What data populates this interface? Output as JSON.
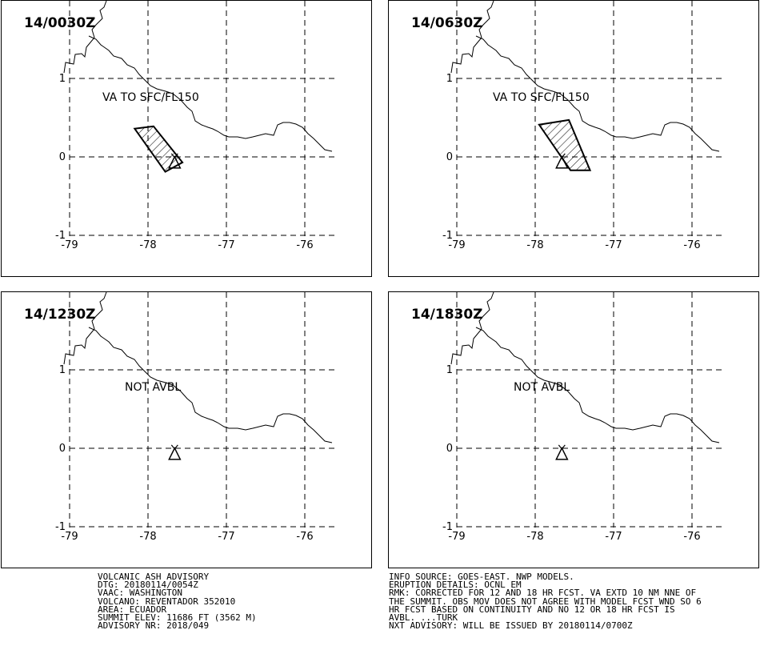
{
  "panels": [
    {
      "time": "14/0030Z",
      "label": "VA TO SFC/FL150",
      "polygon": [
        [
          -78.17,
          0.36
        ],
        [
          -77.93,
          0.39
        ],
        [
          -77.56,
          -0.07
        ],
        [
          -77.78,
          -0.19
        ]
      ]
    },
    {
      "time": "14/0630Z",
      "label": "VA TO SFC/FL150",
      "polygon": [
        [
          -77.95,
          0.41
        ],
        [
          -77.57,
          0.47
        ],
        [
          -77.3,
          -0.17
        ],
        [
          -77.55,
          -0.17
        ]
      ]
    },
    {
      "time": "14/1230Z",
      "label": "NOT AVBL",
      "polygon": null
    },
    {
      "time": "14/1830Z",
      "label": "NOT AVBL",
      "polygon": null
    }
  ],
  "axes": {
    "x_ticks": [
      "-79",
      "-78",
      "-77",
      "-76"
    ],
    "y_ticks": [
      "1",
      "0",
      "-1"
    ]
  },
  "volcano": {
    "lon": -77.66,
    "lat": -0.08
  },
  "advisory_left": [
    "VOLCANIC ASH ADVISORY",
    "DTG: 20180114/0054Z",
    "VAAC: WASHINGTON",
    "VOLCANO: REVENTADOR 352010",
    "AREA: ECUADOR",
    "SUMMIT ELEV: 11686 FT (3562 M)",
    "ADVISORY NR: 2018/049"
  ],
  "advisory_right": [
    "INFO SOURCE: GOES-EAST. NWP MODELS.",
    "ERUPTION DETAILS: OCNL EM",
    "RMK: CORRECTED FOR 12 AND 18 HR FCST. VA EXTD 10 NM NNE OF",
    "THE SUMMIT. OBS MOV DOES NOT AGREE WITH MODEL FCST WND SO 6",
    "HR FCST BASED ON CONTINUITY AND NO 12 OR 18 HR FCST IS",
    "AVBL. ...TURK",
    "NXT ADVISORY: WILL BE ISSUED BY 20180114/0700Z"
  ]
}
